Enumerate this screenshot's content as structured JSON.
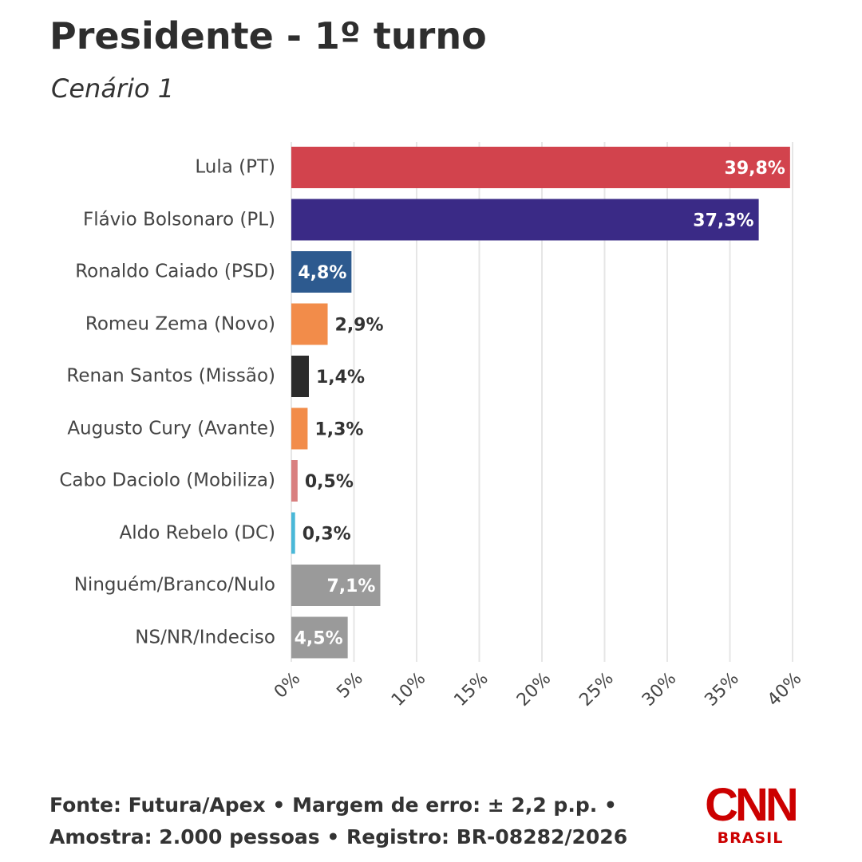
{
  "chart_data": {
    "type": "hbar",
    "title": "Presidente - 1º turno",
    "subtitle": "Cenário 1",
    "categories": [
      "Lula (PT)",
      "Flávio Bolsonaro (PL)",
      "Ronaldo Caiado (PSD)",
      "Romeu Zema (Novo)",
      "Renan Santos (Missão)",
      "Augusto Cury (Avante)",
      "Cabo Daciolo (Mobiliza)",
      "Aldo Rebelo (DC)",
      "Ninguém/Branco/Nulo",
      "NS/NR/Indeciso"
    ],
    "values": [
      39.8,
      37.3,
      4.8,
      2.9,
      1.4,
      1.3,
      0.5,
      0.3,
      7.1,
      4.5
    ],
    "value_labels": [
      "39,8%",
      "37,3%",
      "4,8%",
      "2,9%",
      "1,4%",
      "1,3%",
      "0,5%",
      "0,3%",
      "7,1%",
      "4,5%"
    ],
    "colors": [
      "#d2434d",
      "#3a2a86",
      "#2d5a8f",
      "#f28c4a",
      "#2b2b2b",
      "#f28c4a",
      "#d98080",
      "#4ab8d8",
      "#9a9a9a",
      "#9a9a9a"
    ],
    "xlim": [
      0,
      40
    ],
    "xticks": [
      {
        "value": 0,
        "label": "0%"
      },
      {
        "value": 5,
        "label": "5%"
      },
      {
        "value": 10,
        "label": "10%"
      },
      {
        "value": 15,
        "label": "15%"
      },
      {
        "value": 20,
        "label": "20%"
      },
      {
        "value": 25,
        "label": "25%"
      },
      {
        "value": 30,
        "label": "30%"
      },
      {
        "value": 35,
        "label": "35%"
      },
      {
        "value": 40,
        "label": "40%"
      }
    ],
    "grid": true,
    "source": [
      "Fonte: Futura/Apex • Margem de erro: ± 2,2 p.p. •",
      "Amostra: 2.000 pessoas • Registro: BR-08282/2026"
    ],
    "logo": {
      "name": "CNN",
      "sub": "BRASIL"
    }
  }
}
